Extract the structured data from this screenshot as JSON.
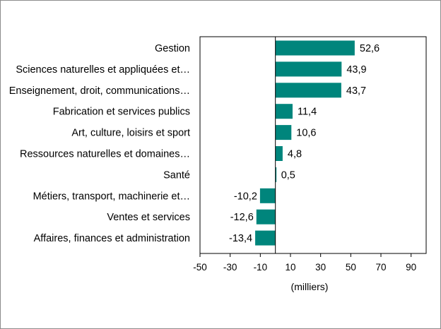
{
  "chart_data": {
    "type": "bar",
    "orientation": "horizontal",
    "categories": [
      "Gestion",
      "Sciences naturelles et appliquées et…",
      "Enseignement, droit, communications…",
      "Fabrication et services publics",
      "Art, culture, loisirs et sport",
      "Ressources naturelles et domaines…",
      "Santé",
      "Métiers, transport, machinerie et…",
      "Ventes et services",
      "Affaires, finances et administration"
    ],
    "values": [
      52.6,
      43.9,
      43.7,
      11.4,
      10.6,
      4.8,
      0.5,
      -10.2,
      -12.6,
      -13.4
    ],
    "value_labels": [
      "52,6",
      "43,9",
      "43,7",
      "11,4",
      "10,6",
      "4,8",
      "0,5",
      "-10,2",
      "-12,6",
      "-13,4"
    ],
    "xlabel": "(milliers)",
    "xlim": [
      -50,
      100
    ],
    "xticks": [
      -50,
      -30,
      -10,
      10,
      30,
      50,
      70,
      90
    ],
    "xtick_labels": [
      "-50",
      "-30",
      "-10",
      "10",
      "30",
      "50",
      "70",
      "90"
    ],
    "grid": false,
    "legend": "none",
    "bar_color": "#00857c"
  }
}
